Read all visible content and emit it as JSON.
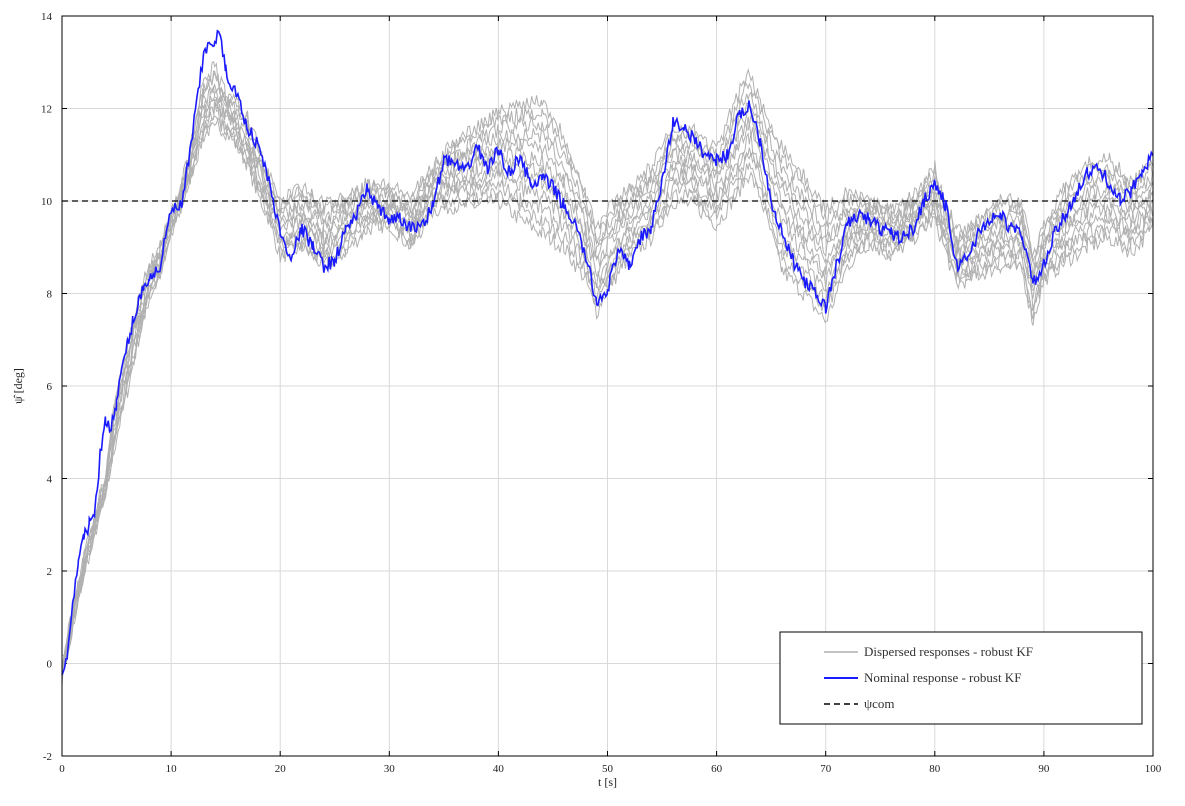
{
  "chart_data": {
    "type": "line",
    "xlabel": "t [s]",
    "ylabel": "ψ̂ [deg]",
    "xlim": [
      0,
      100
    ],
    "ylim": [
      -2,
      14
    ],
    "xticks": [
      0,
      10,
      20,
      30,
      40,
      50,
      60,
      70,
      80,
      90,
      100
    ],
    "yticks": [
      -2,
      0,
      2,
      4,
      6,
      8,
      10,
      12,
      14
    ],
    "grid": true,
    "legend_position": "bottom-right",
    "legend": [
      "Dispersed responses - robust KF",
      "Nominal response - robust KF",
      "ψcom"
    ],
    "colors": {
      "dispersed": "#b0b0b0",
      "nominal": "#1a1aff",
      "reference": "#000000"
    },
    "series": [
      {
        "name": "Dispersed responses - robust KF",
        "x": [
          0,
          1,
          2,
          3,
          4,
          5,
          6,
          7,
          8,
          9,
          10,
          11,
          12,
          13,
          14,
          15,
          16,
          17,
          18,
          19,
          20,
          22,
          24,
          26,
          28,
          30,
          32,
          34,
          36,
          38,
          40,
          42,
          44,
          46,
          48,
          49,
          50,
          52,
          54,
          56,
          58,
          60,
          62,
          63,
          64,
          66,
          68,
          70,
          72,
          74,
          76,
          78,
          80,
          82,
          84,
          86,
          88,
          89,
          90,
          92,
          94,
          96,
          98,
          100
        ],
        "y_low": [
          -0.3,
          0.8,
          1.9,
          2.8,
          3.6,
          4.9,
          5.9,
          7.0,
          7.9,
          8.4,
          9.3,
          9.9,
          10.7,
          11.4,
          11.7,
          11.5,
          11.2,
          10.8,
          10.1,
          9.6,
          8.8,
          9.0,
          8.6,
          8.9,
          9.4,
          9.5,
          9.0,
          9.8,
          9.9,
          9.9,
          10.0,
          9.6,
          9.3,
          9.0,
          8.3,
          7.6,
          8.1,
          8.8,
          9.2,
          10.0,
          9.9,
          9.5,
          10.2,
          10.6,
          10.1,
          8.5,
          8.0,
          7.4,
          8.6,
          9.1,
          8.8,
          9.2,
          9.6,
          8.2,
          8.4,
          8.6,
          8.5,
          7.4,
          8.3,
          8.7,
          9.0,
          9.2,
          8.9,
          9.4
        ],
        "y_high": [
          0.0,
          1.2,
          2.3,
          3.2,
          4.1,
          5.9,
          6.8,
          7.9,
          8.6,
          9.0,
          9.8,
          10.4,
          11.4,
          12.6,
          12.9,
          12.3,
          12.1,
          11.8,
          11.2,
          10.5,
          10.0,
          10.3,
          9.9,
          10.1,
          10.4,
          10.3,
          10.1,
          10.7,
          11.3,
          11.6,
          11.9,
          12.1,
          12.2,
          11.4,
          10.2,
          9.4,
          9.8,
          10.3,
          10.7,
          11.6,
          11.5,
          11.1,
          12.3,
          12.8,
          12.1,
          11.2,
          10.5,
          9.8,
          10.2,
          10.0,
          9.8,
          10.1,
          10.7,
          9.3,
          9.6,
          10.1,
          9.9,
          8.8,
          9.5,
          10.3,
          10.8,
          10.9,
          10.4,
          10.8
        ],
        "count": 12
      },
      {
        "name": "Nominal response - robust KF",
        "x": [
          0,
          0.5,
          1,
          1.5,
          2,
          2.5,
          3,
          3.5,
          4,
          4.5,
          5,
          5.5,
          6,
          6.5,
          7,
          7.5,
          8,
          9,
          10,
          11,
          12,
          13,
          14,
          14.5,
          15,
          16,
          17,
          18,
          19,
          20,
          21,
          22,
          23,
          24,
          25,
          26,
          27,
          28,
          29,
          30,
          31,
          32,
          33,
          34,
          35,
          36,
          37,
          38,
          39,
          40,
          41,
          42,
          43,
          44,
          45,
          46,
          47,
          48,
          49,
          50,
          51,
          52,
          53,
          54,
          55,
          56,
          57,
          58,
          59,
          60,
          61,
          62,
          63,
          64,
          65,
          66,
          67,
          68,
          69,
          70,
          71,
          72,
          73,
          74,
          75,
          76,
          77,
          78,
          79,
          80,
          81,
          82,
          83,
          84,
          85,
          86,
          87,
          88,
          89,
          90,
          91,
          92,
          93,
          94,
          95,
          96,
          97,
          98,
          99,
          100
        ],
        "y": [
          -0.2,
          0.2,
          1.3,
          2.1,
          2.8,
          3.0,
          3.3,
          4.5,
          5.3,
          5.1,
          5.6,
          6.4,
          6.9,
          7.4,
          7.8,
          8.2,
          8.3,
          8.6,
          9.8,
          9.9,
          11.5,
          13.2,
          13.5,
          13.6,
          12.8,
          12.3,
          11.6,
          11.2,
          10.4,
          9.3,
          8.8,
          9.4,
          9.0,
          8.6,
          8.7,
          9.4,
          9.7,
          10.3,
          9.8,
          9.6,
          9.6,
          9.4,
          9.5,
          9.9,
          10.9,
          10.8,
          10.6,
          11.2,
          10.7,
          11.1,
          10.6,
          11.0,
          10.3,
          10.5,
          10.3,
          9.9,
          9.5,
          8.8,
          7.8,
          8.1,
          8.9,
          8.6,
          9.2,
          9.4,
          10.4,
          11.7,
          11.6,
          11.3,
          11.0,
          10.9,
          11.0,
          11.8,
          12.1,
          11.3,
          10.0,
          9.3,
          8.7,
          8.3,
          8.0,
          7.7,
          8.6,
          9.5,
          9.7,
          9.6,
          9.4,
          9.3,
          9.2,
          9.4,
          10.0,
          10.4,
          9.9,
          8.6,
          8.8,
          9.3,
          9.6,
          9.7,
          9.4,
          9.3,
          8.2,
          8.6,
          9.3,
          9.7,
          10.2,
          10.6,
          10.7,
          10.4,
          10.0,
          10.2,
          10.7,
          11.0
        ]
      },
      {
        "name": "ψcom",
        "x": [
          0,
          100
        ],
        "y": [
          10,
          10
        ]
      }
    ]
  }
}
